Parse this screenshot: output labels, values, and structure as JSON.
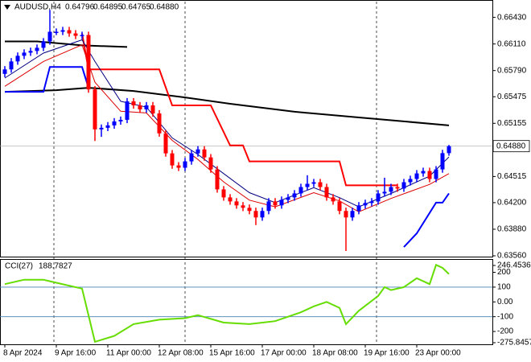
{
  "chart_data": [
    {
      "type": "candlestick",
      "title": "AUDUSD,H4",
      "price_label": "0.64880",
      "categories": [
        "8 Apr 2024",
        null,
        null,
        null,
        null,
        null,
        null,
        null,
        "9 Apr 16:00",
        null,
        null,
        null,
        null,
        null,
        null,
        null,
        "11 Apr 00:00",
        null,
        null,
        null,
        null,
        null,
        null,
        null,
        "12 Apr 08:00",
        null,
        null,
        null,
        null,
        null,
        null,
        null,
        "15 Apr 16:00",
        null,
        null,
        null,
        null,
        null,
        null,
        null,
        "17 Apr 00:00",
        null,
        null,
        null,
        null,
        null,
        null,
        null,
        "18 Apr 08:00",
        null,
        null,
        null,
        null,
        null,
        null,
        null,
        "19 Apr 16:00",
        null,
        null,
        null,
        null,
        null,
        null,
        null,
        "23 Apr 00:00",
        null,
        null,
        null,
        null,
        null
      ],
      "open": [
        0.6575,
        0.65804,
        0.659,
        0.65968,
        0.66006,
        0.66026,
        0.66064,
        0.66141,
        0.66257,
        0.66257,
        0.66276,
        0.66237,
        0.66208,
        0.66218,
        0.65563,
        0.65082,
        0.65101,
        0.6513,
        0.65178,
        0.65197,
        0.65419,
        0.65371,
        0.65323,
        0.65371,
        0.65274,
        0.65034,
        0.64793,
        0.64648,
        0.6462,
        0.64697,
        0.64793,
        0.64841,
        0.64745,
        0.646,
        0.6436,
        0.64263,
        0.64215,
        0.64167,
        0.64138,
        0.641,
        0.64022,
        0.641,
        0.64215,
        0.64167,
        0.64234,
        0.64263,
        0.64311,
        0.64388,
        0.64427,
        0.64446,
        0.64388,
        0.64263,
        0.64215,
        0.641,
        0.64022,
        0.641,
        0.64167,
        0.64196,
        0.64215,
        0.64311,
        0.64331,
        0.64388,
        0.6437,
        0.64446,
        0.64485,
        0.64552,
        0.64581,
        0.64485,
        0.646,
        0.64796
      ],
      "high": [
        0.65844,
        0.6594,
        0.66008,
        0.66046,
        0.66066,
        0.66104,
        0.66181,
        0.6652,
        0.66297,
        0.66316,
        0.66316,
        0.66277,
        0.66258,
        0.66258,
        0.65603,
        0.65141,
        0.6517,
        0.65218,
        0.65237,
        0.65459,
        0.65459,
        0.65411,
        0.65411,
        0.65411,
        0.65314,
        0.65074,
        0.64833,
        0.64688,
        0.64737,
        0.64833,
        0.64881,
        0.64881,
        0.64785,
        0.6464,
        0.644,
        0.64303,
        0.64255,
        0.64207,
        0.64178,
        0.6414,
        0.6414,
        0.64255,
        0.64255,
        0.64274,
        0.64303,
        0.64351,
        0.64428,
        0.6453,
        0.64486,
        0.64486,
        0.64428,
        0.64303,
        0.64255,
        0.6414,
        0.6414,
        0.64207,
        0.64236,
        0.64255,
        0.64351,
        0.645,
        0.64428,
        0.64428,
        0.64486,
        0.64525,
        0.64592,
        0.64621,
        0.64621,
        0.6464,
        0.64836,
        0.64895
      ],
      "low": [
        0.6571,
        0.65764,
        0.6586,
        0.65928,
        0.65966,
        0.65986,
        0.66024,
        0.66101,
        0.66217,
        0.66217,
        0.66197,
        0.66168,
        0.66168,
        0.65523,
        0.64942,
        0.64992,
        0.65061,
        0.6509,
        0.65138,
        0.65157,
        0.65331,
        0.65283,
        0.65283,
        0.65234,
        0.64994,
        0.64753,
        0.64608,
        0.6458,
        0.6458,
        0.64657,
        0.64753,
        0.64705,
        0.6456,
        0.6432,
        0.64223,
        0.64175,
        0.64127,
        0.64098,
        0.6406,
        0.6393,
        0.63982,
        0.6406,
        0.64127,
        0.64127,
        0.64194,
        0.64223,
        0.64271,
        0.64348,
        0.64387,
        0.64348,
        0.64223,
        0.64175,
        0.6406,
        0.63618,
        0.63982,
        0.6406,
        0.64127,
        0.64156,
        0.64175,
        0.64271,
        0.64291,
        0.6433,
        0.6433,
        0.64406,
        0.64445,
        0.64512,
        0.64445,
        0.64445,
        0.6456,
        0.64765
      ],
      "close": [
        0.65804,
        0.659,
        0.65968,
        0.66006,
        0.66026,
        0.66064,
        0.66141,
        0.66257,
        0.66257,
        0.66276,
        0.66237,
        0.66208,
        0.66218,
        0.65563,
        0.65082,
        0.65101,
        0.6513,
        0.65178,
        0.65197,
        0.65419,
        0.65371,
        0.65323,
        0.65371,
        0.65274,
        0.65034,
        0.64793,
        0.64648,
        0.6462,
        0.64697,
        0.64793,
        0.64841,
        0.64745,
        0.646,
        0.6436,
        0.64263,
        0.64215,
        0.64167,
        0.64138,
        0.641,
        0.64022,
        0.641,
        0.64215,
        0.64167,
        0.64234,
        0.64263,
        0.64311,
        0.64388,
        0.64427,
        0.64446,
        0.64388,
        0.64263,
        0.64215,
        0.641,
        0.64022,
        0.641,
        0.64167,
        0.64196,
        0.64215,
        0.64311,
        0.64331,
        0.64388,
        0.6437,
        0.64446,
        0.64485,
        0.64552,
        0.64581,
        0.64485,
        0.646,
        0.64796,
        0.6488
      ],
      "up_color": "#0000ff",
      "down_color": "#ff0000",
      "ylim": [
        0.6356,
        0.6662
      ],
      "yticks": [
        {
          "value": 0.6643,
          "label": "0.66430"
        },
        {
          "value": 0.6611,
          "label": "0.66110"
        },
        {
          "value": 0.6579,
          "label": "0.65790"
        },
        {
          "value": 0.65475,
          "label": "0.65475"
        },
        {
          "value": 0.65155,
          "label": "0.65155"
        },
        {
          "value": 0.64515,
          "label": "0.64515"
        },
        {
          "value": 0.642,
          "label": "0.64200"
        },
        {
          "value": 0.6388,
          "label": "0.63880"
        },
        {
          "value": 0.6356,
          "label": "0.63560"
        }
      ],
      "lines": [
        {
          "color": "#000000",
          "width": 2,
          "x": [
            0,
            8,
            13,
            20,
            28,
            35,
            45,
            55,
            62,
            69
          ],
          "values": [
            0.65534,
            0.65554,
            0.65583,
            0.65544,
            0.65467,
            0.6539,
            0.65294,
            0.65226,
            0.65178,
            0.6513
          ]
        },
        {
          "color": "#000000",
          "width": 2,
          "x": [
            0,
            5,
            12,
            19
          ],
          "values": [
            0.66141,
            0.66141,
            0.66093,
            0.66074
          ]
        },
        {
          "color": "#ff0000",
          "width": 2,
          "x": [
            12,
            13,
            24,
            26,
            32,
            35,
            37,
            38,
            52,
            53,
            61
          ],
          "values": [
            0.66237,
            0.65804,
            0.65804,
            0.65371,
            0.65371,
            0.64889,
            0.64889,
            0.64697,
            0.64697,
            0.64408,
            0.64408
          ]
        },
        {
          "color": "#0000ff",
          "width": 2,
          "x": [
            0,
            6,
            7,
            12,
            13
          ],
          "values": [
            0.65534,
            0.65534,
            0.65833,
            0.65833,
            0.65583
          ]
        },
        {
          "color": "#0000ff",
          "width": 2,
          "x": [
            62,
            64,
            67,
            68,
            69
          ],
          "values": [
            0.63666,
            0.6383,
            0.642,
            0.642,
            0.64311
          ]
        },
        {
          "color": "#000080",
          "width": 1,
          "x": [
            0,
            6,
            12,
            14,
            18,
            22,
            26,
            30,
            34,
            38,
            42,
            48,
            52,
            55,
            60,
            66,
            69
          ],
          "values": [
            0.657,
            0.66,
            0.6616,
            0.659,
            0.6542,
            0.6535,
            0.6498,
            0.6478,
            0.6455,
            0.6432,
            0.642,
            0.6438,
            0.6426,
            0.6415,
            0.6431,
            0.6452,
            0.6475
          ]
        },
        {
          "color": "#dd0000",
          "width": 1,
          "x": [
            0,
            6,
            12,
            14,
            18,
            22,
            26,
            30,
            34,
            38,
            42,
            48,
            52,
            55,
            60,
            66,
            69
          ],
          "values": [
            0.656,
            0.659,
            0.661,
            0.6565,
            0.653,
            0.6528,
            0.6495,
            0.6472,
            0.6445,
            0.6423,
            0.6415,
            0.6432,
            0.6422,
            0.6409,
            0.6425,
            0.6442,
            0.6455
          ]
        }
      ]
    },
    {
      "type": "line",
      "title": "CCI(27)",
      "color": "#66dd00",
      "x": [
        0,
        3,
        6,
        7,
        12,
        14,
        17,
        20,
        24,
        28,
        30,
        34,
        38,
        42,
        46,
        48,
        50,
        52,
        53,
        55,
        58,
        59,
        60,
        62,
        64,
        66,
        67,
        68,
        69
      ],
      "values": [
        120,
        150,
        150,
        140,
        90,
        -270,
        -230,
        -150,
        -120,
        -110,
        -90,
        -140,
        -150,
        -130,
        -70,
        -30,
        0,
        -40,
        -150,
        -60,
        40,
        100,
        80,
        100,
        160,
        120,
        250,
        230,
        188.7827
      ],
      "ylim": [
        -275.8457,
        246.4536
      ],
      "yticks": [
        246.4536,
        200,
        100,
        {
          "value": 0,
          "label": "0.00"
        },
        -100,
        -200,
        -275.8457
      ],
      "levels": [
        100,
        -100
      ]
    }
  ]
}
